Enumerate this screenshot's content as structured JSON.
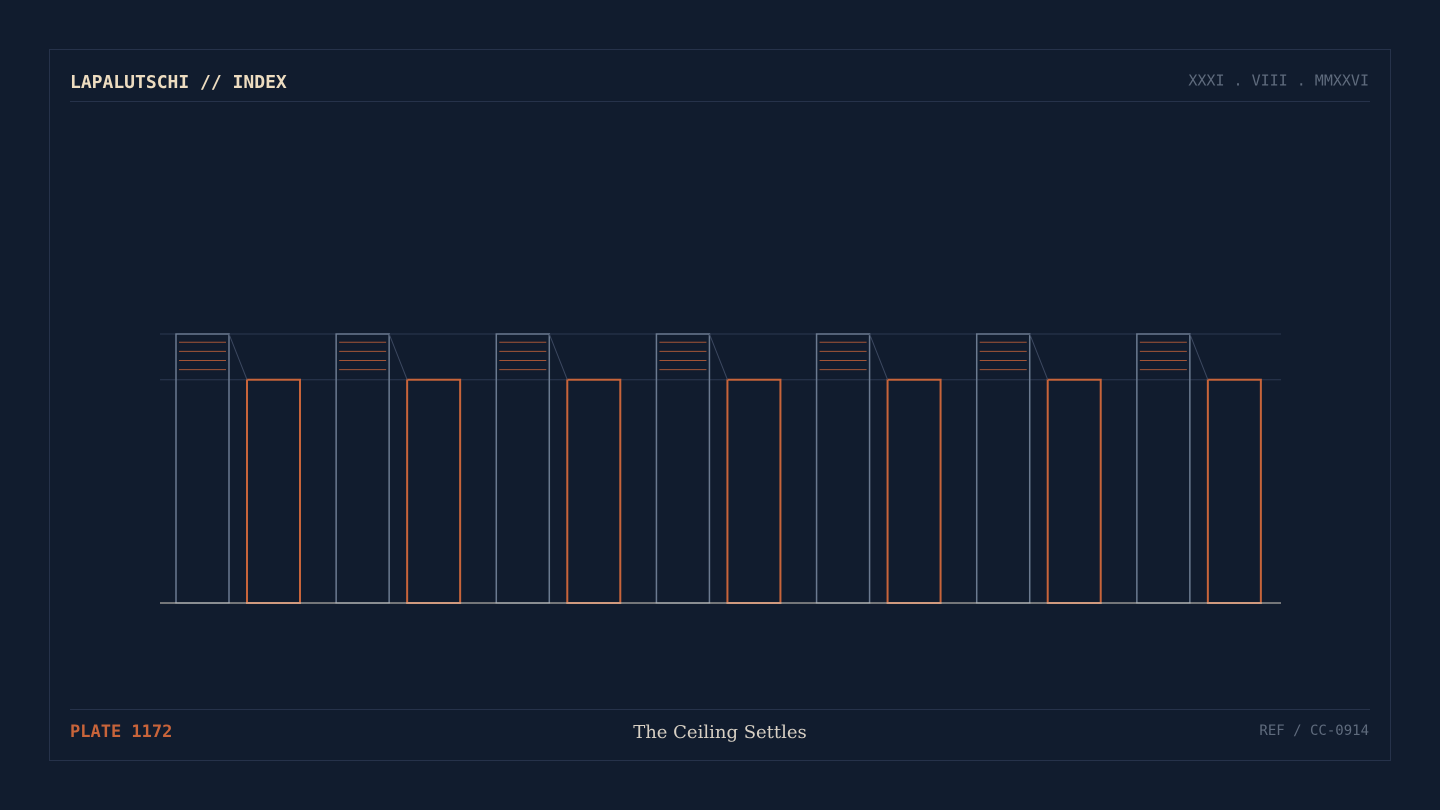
{
  "header": {
    "title": "LAPALUTSCHI // INDEX",
    "date": "XXXI . VIII . MMXXVI"
  },
  "footer": {
    "plate": "PLATE 1172",
    "caption": "The Ceiling Settles",
    "ref": "REF / CC-0914"
  },
  "chart_data": {
    "type": "bar",
    "categories": [
      null,
      null,
      null,
      null,
      null,
      null,
      null
    ],
    "series": [
      {
        "color": "#6b7a90",
        "values": [
          100,
          100,
          100,
          100,
          100,
          100,
          100
        ]
      },
      {
        "color": "#c8643a",
        "values": [
          83,
          83,
          83,
          83,
          83,
          83,
          83
        ]
      }
    ],
    "ylim": [
      0,
      100
    ]
  }
}
